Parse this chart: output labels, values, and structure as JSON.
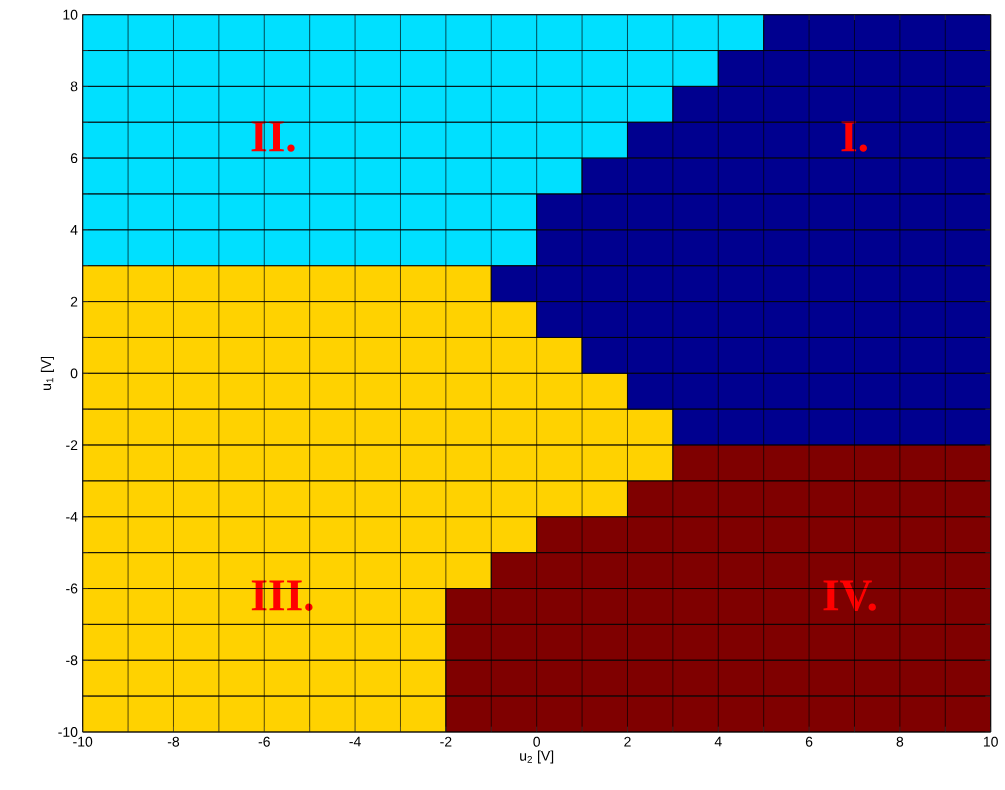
{
  "chart_data": {
    "type": "bar",
    "orientation": "horizontal",
    "xlabel": "u$_{2}$ [V]",
    "ylabel": "u$_{1}$ [V]",
    "x": [
      9.5,
      8.5,
      7.5,
      6.5,
      5.5,
      4.5,
      3.5,
      2.5,
      1.5,
      0.5,
      -0.5,
      -1.5,
      -2.5,
      -3.5,
      -4.5,
      -5.5,
      -6.5,
      -7.5,
      -8.5,
      -9.5
    ],
    "series": [
      {
        "base": [
          -10,
          -10,
          -10,
          -10,
          -10,
          -10,
          -10,
          -10,
          -10,
          -10,
          -10,
          -10,
          -10,
          -10,
          -10,
          -10,
          -10,
          -10,
          -10,
          -10
        ],
        "values": [
          15,
          14,
          13,
          12,
          11,
          10,
          10,
          9,
          10,
          11,
          12,
          13,
          13,
          12,
          10,
          9,
          8,
          8,
          8,
          8
        ],
        "colors": [
          "#00e0ff",
          "#00e0ff",
          "#00e0ff",
          "#00e0ff",
          "#00e0ff",
          "#00e0ff",
          "#00e0ff",
          "#ffd200",
          "#ffd200",
          "#ffd200",
          "#ffd200",
          "#ffd200",
          "#ffd200",
          "#ffd200",
          "#ffd200",
          "#ffd200",
          "#ffd200",
          "#ffd200",
          "#ffd200",
          "#ffd200"
        ]
      },
      {
        "base": [
          5,
          4,
          3,
          2,
          1,
          0,
          0,
          -1,
          0,
          1,
          2,
          3,
          3,
          2,
          0,
          -1,
          -2,
          -2,
          -2,
          -2
        ],
        "values": [
          5,
          6,
          7,
          8,
          9,
          10,
          10,
          11,
          10,
          9,
          8,
          7,
          7,
          8,
          10,
          11,
          12,
          12,
          12,
          12
        ],
        "colors": [
          "#00008f",
          "#00008f",
          "#00008f",
          "#00008f",
          "#00008f",
          "#00008f",
          "#00008f",
          "#00008f",
          "#00008f",
          "#00008f",
          "#00008f",
          "#00008f",
          "#7f0000",
          "#7f0000",
          "#7f0000",
          "#7f0000",
          "#7f0000",
          "#7f0000",
          "#7f0000",
          "#7f0000"
        ]
      }
    ],
    "xlim": [
      -10,
      10
    ],
    "ylim": [
      -10,
      10
    ],
    "xticks": [
      -10,
      {
        "value": -9,
        "label": null
      },
      -8,
      {
        "value": -7,
        "label": null
      },
      -6,
      {
        "value": -5,
        "label": null
      },
      -4,
      {
        "value": -3,
        "label": null
      },
      -2,
      {
        "value": -1,
        "label": null
      },
      0,
      {
        "value": 1,
        "label": null
      },
      2,
      {
        "value": 3,
        "label": null
      },
      4,
      {
        "value": 5,
        "label": null
      },
      6,
      {
        "value": 7,
        "label": null
      },
      8,
      {
        "value": 9,
        "label": null
      },
      10
    ],
    "yticks": [
      -10,
      {
        "value": -9,
        "label": null
      },
      -8,
      {
        "value": -7,
        "label": null
      },
      -6,
      {
        "value": -5,
        "label": null
      },
      -4,
      {
        "value": -3,
        "label": null
      },
      -2,
      {
        "value": -1,
        "label": null
      },
      0,
      {
        "value": 1,
        "label": null
      },
      2,
      {
        "value": 3,
        "label": null
      },
      4,
      {
        "value": 5,
        "label": null
      },
      6,
      {
        "value": 7,
        "label": null
      },
      8,
      {
        "value": 9,
        "label": null
      },
      10
    ],
    "grid": true,
    "annotations": [
      "I.",
      "II.",
      "III.",
      "IV."
    ]
  }
}
